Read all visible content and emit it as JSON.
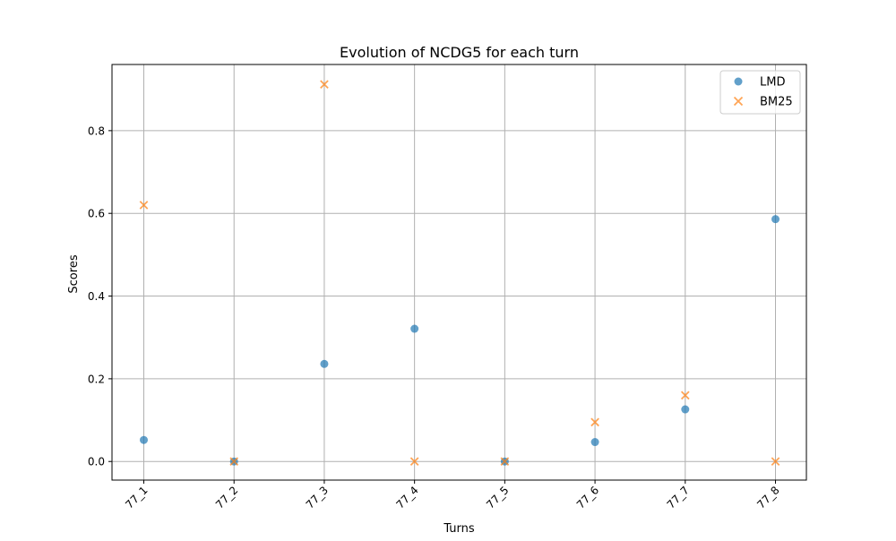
{
  "chart_data": {
    "type": "scatter",
    "title": "Evolution of NCDG5 for each turn",
    "xlabel": "Turns",
    "ylabel": "Scores",
    "categories": [
      "77_1",
      "77_2",
      "77_3",
      "77_4",
      "77_5",
      "77_6",
      "77_7",
      "77_8"
    ],
    "ylim": [
      -0.045,
      0.96
    ],
    "yticks": [
      0.0,
      0.2,
      0.4,
      0.6,
      0.8
    ],
    "ytick_labels": [
      "0.0",
      "0.2",
      "0.4",
      "0.6",
      "0.8"
    ],
    "grid": true,
    "legend_position": "top-right",
    "x_tick_rotation": 45,
    "series": [
      {
        "name": "LMD",
        "marker": "circle",
        "color": "#1f77b4",
        "alpha": 0.7,
        "values": [
          0.052,
          0.0,
          0.236,
          0.321,
          0.0,
          0.047,
          0.126,
          0.586
        ]
      },
      {
        "name": "BM25",
        "marker": "x",
        "color": "#ff7f0e",
        "alpha": 0.7,
        "values": [
          0.62,
          0.0,
          0.912,
          0.0,
          0.0,
          0.095,
          0.16,
          0.0
        ]
      }
    ]
  }
}
